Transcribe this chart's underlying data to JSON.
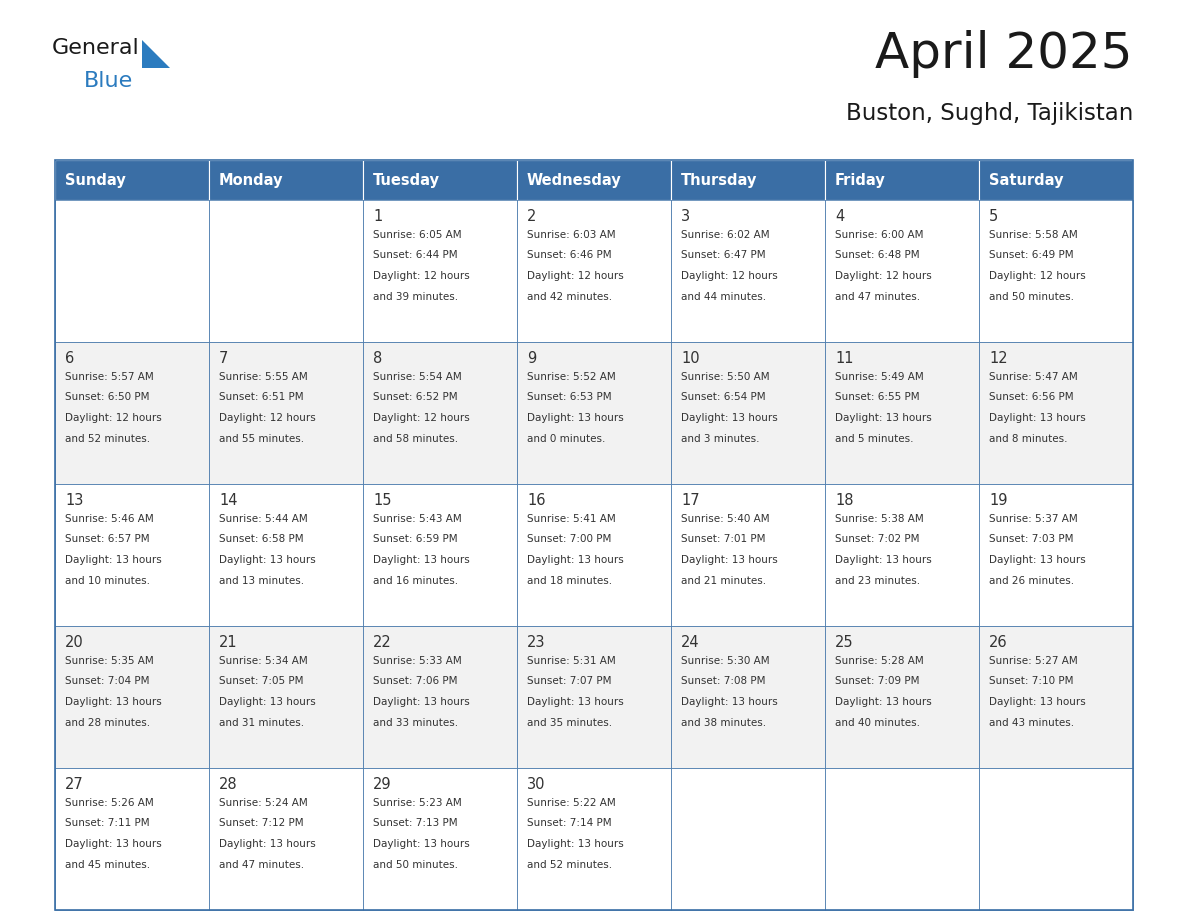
{
  "title": "April 2025",
  "subtitle": "Buston, Sughd, Tajikistan",
  "header_bg_color": "#3a6ea5",
  "header_text_color": "#ffffff",
  "cell_bg_color": "#ffffff",
  "cell_bg_odd_color": "#f2f2f2",
  "border_color": "#3a6ea5",
  "text_color": "#333333",
  "day_number_color": "#333333",
  "day_headers": [
    "Sunday",
    "Monday",
    "Tuesday",
    "Wednesday",
    "Thursday",
    "Friday",
    "Saturday"
  ],
  "weeks": [
    [
      {
        "day": "",
        "info": ""
      },
      {
        "day": "",
        "info": ""
      },
      {
        "day": "1",
        "info": "Sunrise: 6:05 AM\nSunset: 6:44 PM\nDaylight: 12 hours\nand 39 minutes."
      },
      {
        "day": "2",
        "info": "Sunrise: 6:03 AM\nSunset: 6:46 PM\nDaylight: 12 hours\nand 42 minutes."
      },
      {
        "day": "3",
        "info": "Sunrise: 6:02 AM\nSunset: 6:47 PM\nDaylight: 12 hours\nand 44 minutes."
      },
      {
        "day": "4",
        "info": "Sunrise: 6:00 AM\nSunset: 6:48 PM\nDaylight: 12 hours\nand 47 minutes."
      },
      {
        "day": "5",
        "info": "Sunrise: 5:58 AM\nSunset: 6:49 PM\nDaylight: 12 hours\nand 50 minutes."
      }
    ],
    [
      {
        "day": "6",
        "info": "Sunrise: 5:57 AM\nSunset: 6:50 PM\nDaylight: 12 hours\nand 52 minutes."
      },
      {
        "day": "7",
        "info": "Sunrise: 5:55 AM\nSunset: 6:51 PM\nDaylight: 12 hours\nand 55 minutes."
      },
      {
        "day": "8",
        "info": "Sunrise: 5:54 AM\nSunset: 6:52 PM\nDaylight: 12 hours\nand 58 minutes."
      },
      {
        "day": "9",
        "info": "Sunrise: 5:52 AM\nSunset: 6:53 PM\nDaylight: 13 hours\nand 0 minutes."
      },
      {
        "day": "10",
        "info": "Sunrise: 5:50 AM\nSunset: 6:54 PM\nDaylight: 13 hours\nand 3 minutes."
      },
      {
        "day": "11",
        "info": "Sunrise: 5:49 AM\nSunset: 6:55 PM\nDaylight: 13 hours\nand 5 minutes."
      },
      {
        "day": "12",
        "info": "Sunrise: 5:47 AM\nSunset: 6:56 PM\nDaylight: 13 hours\nand 8 minutes."
      }
    ],
    [
      {
        "day": "13",
        "info": "Sunrise: 5:46 AM\nSunset: 6:57 PM\nDaylight: 13 hours\nand 10 minutes."
      },
      {
        "day": "14",
        "info": "Sunrise: 5:44 AM\nSunset: 6:58 PM\nDaylight: 13 hours\nand 13 minutes."
      },
      {
        "day": "15",
        "info": "Sunrise: 5:43 AM\nSunset: 6:59 PM\nDaylight: 13 hours\nand 16 minutes."
      },
      {
        "day": "16",
        "info": "Sunrise: 5:41 AM\nSunset: 7:00 PM\nDaylight: 13 hours\nand 18 minutes."
      },
      {
        "day": "17",
        "info": "Sunrise: 5:40 AM\nSunset: 7:01 PM\nDaylight: 13 hours\nand 21 minutes."
      },
      {
        "day": "18",
        "info": "Sunrise: 5:38 AM\nSunset: 7:02 PM\nDaylight: 13 hours\nand 23 minutes."
      },
      {
        "day": "19",
        "info": "Sunrise: 5:37 AM\nSunset: 7:03 PM\nDaylight: 13 hours\nand 26 minutes."
      }
    ],
    [
      {
        "day": "20",
        "info": "Sunrise: 5:35 AM\nSunset: 7:04 PM\nDaylight: 13 hours\nand 28 minutes."
      },
      {
        "day": "21",
        "info": "Sunrise: 5:34 AM\nSunset: 7:05 PM\nDaylight: 13 hours\nand 31 minutes."
      },
      {
        "day": "22",
        "info": "Sunrise: 5:33 AM\nSunset: 7:06 PM\nDaylight: 13 hours\nand 33 minutes."
      },
      {
        "day": "23",
        "info": "Sunrise: 5:31 AM\nSunset: 7:07 PM\nDaylight: 13 hours\nand 35 minutes."
      },
      {
        "day": "24",
        "info": "Sunrise: 5:30 AM\nSunset: 7:08 PM\nDaylight: 13 hours\nand 38 minutes."
      },
      {
        "day": "25",
        "info": "Sunrise: 5:28 AM\nSunset: 7:09 PM\nDaylight: 13 hours\nand 40 minutes."
      },
      {
        "day": "26",
        "info": "Sunrise: 5:27 AM\nSunset: 7:10 PM\nDaylight: 13 hours\nand 43 minutes."
      }
    ],
    [
      {
        "day": "27",
        "info": "Sunrise: 5:26 AM\nSunset: 7:11 PM\nDaylight: 13 hours\nand 45 minutes."
      },
      {
        "day": "28",
        "info": "Sunrise: 5:24 AM\nSunset: 7:12 PM\nDaylight: 13 hours\nand 47 minutes."
      },
      {
        "day": "29",
        "info": "Sunrise: 5:23 AM\nSunset: 7:13 PM\nDaylight: 13 hours\nand 50 minutes."
      },
      {
        "day": "30",
        "info": "Sunrise: 5:22 AM\nSunset: 7:14 PM\nDaylight: 13 hours\nand 52 minutes."
      },
      {
        "day": "",
        "info": ""
      },
      {
        "day": "",
        "info": ""
      },
      {
        "day": "",
        "info": ""
      }
    ]
  ],
  "logo_color1": "#1a1a1a",
  "logo_color2": "#2b7bbf",
  "logo_triangle_color": "#2b7bbf",
  "fig_width": 11.88,
  "fig_height": 9.18,
  "dpi": 100
}
